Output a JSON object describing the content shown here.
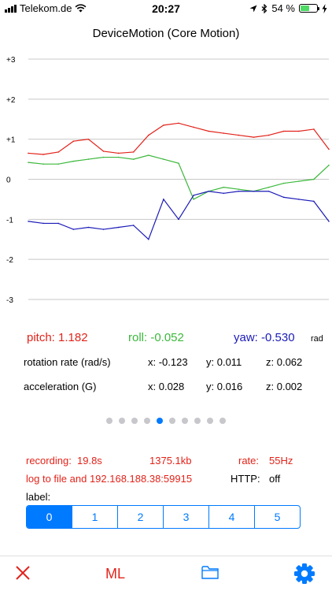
{
  "status_bar": {
    "carrier": "Telekom.de",
    "time": "20:27",
    "battery": "54 %",
    "battery_level": 0.54
  },
  "screen_title": "DeviceMotion (Core Motion)",
  "chart_data": {
    "type": "line",
    "ylim": [
      -3,
      3
    ],
    "ytick_labels": [
      "+3",
      "+2",
      "+1",
      "0",
      "-1",
      "-2",
      "-3"
    ],
    "x": [
      0,
      5,
      10,
      15,
      20,
      25,
      30,
      35,
      40,
      45,
      50,
      55,
      60,
      65,
      70,
      75,
      80,
      85,
      90,
      95,
      100
    ],
    "series": [
      {
        "color": "#e2231a",
        "values": [
          0.65,
          0.62,
          0.68,
          0.95,
          1.0,
          0.7,
          0.65,
          0.68,
          1.1,
          1.35,
          1.4,
          1.3,
          1.2,
          1.15,
          1.1,
          1.05,
          1.1,
          1.2,
          1.2,
          1.25,
          0.75
        ]
      },
      {
        "color": "#3cb83c",
        "values": [
          0.42,
          0.38,
          0.38,
          0.45,
          0.5,
          0.55,
          0.55,
          0.5,
          0.6,
          0.5,
          0.4,
          -0.5,
          -0.3,
          -0.2,
          -0.25,
          -0.3,
          -0.2,
          -0.1,
          -0.05,
          0.0,
          0.35
        ]
      },
      {
        "color": "#1a1ab8",
        "values": [
          -1.05,
          -1.1,
          -1.1,
          -1.25,
          -1.2,
          -1.25,
          -1.2,
          -1.15,
          -1.5,
          -0.5,
          -1.0,
          -0.4,
          -0.3,
          -0.35,
          -0.3,
          -0.3,
          -0.3,
          -0.45,
          -0.5,
          -0.55,
          -1.05
        ]
      }
    ]
  },
  "readings": {
    "pitch": "pitch: 1.182",
    "roll": "roll: -0.052",
    "yaw": "yaw: -0.530",
    "unit": "rad",
    "rotation_label": "rotation rate (rad/s)",
    "rotation_x": "x: -0.123",
    "rotation_y": "y: 0.011",
    "rotation_z": "z: 0.062",
    "accel_label": "acceleration (G)",
    "accel_x": "x: 0.028",
    "accel_y": "y: 0.016",
    "accel_z": "z: 0.002"
  },
  "pager": {
    "count": 10,
    "active": 4
  },
  "recording": {
    "label": "recording:",
    "duration": "19.8s",
    "size": "1375.1kb",
    "rate_label": "rate:",
    "rate_value": "55Hz",
    "log_text": "log to file and 192.168.188.38:59915",
    "http_label": "HTTP:",
    "http_value": "off"
  },
  "label_picker": {
    "title": "label:",
    "options": [
      "0",
      "1",
      "2",
      "3",
      "4",
      "5"
    ],
    "selected": 0
  },
  "toolbar": {
    "ml_label": "ML",
    "close_color": "#e2231a",
    "accent": "#007aff"
  }
}
